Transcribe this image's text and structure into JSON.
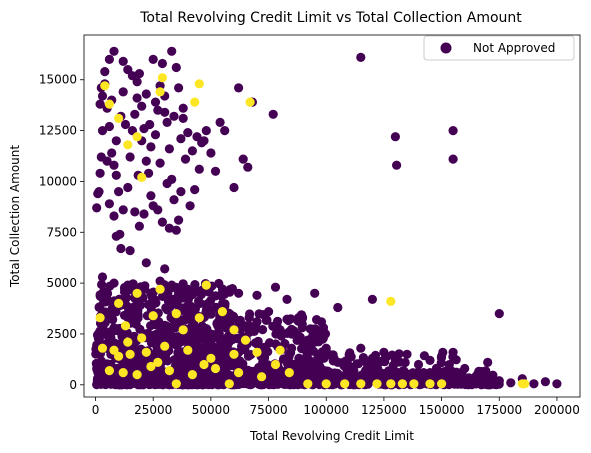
{
  "chart_data": {
    "type": "scatter",
    "title": "Total Revolving Credit Limit vs Total Collection Amount",
    "xlabel": "Total Revolving Credit Limit",
    "ylabel": "Total Collection Amount",
    "xlim": [
      -5000,
      210000
    ],
    "ylim": [
      -600,
      17200
    ],
    "xticks": [
      0,
      25000,
      50000,
      75000,
      100000,
      125000,
      150000,
      175000,
      200000
    ],
    "yticks": [
      0,
      2500,
      5000,
      7500,
      10000,
      12500,
      15000
    ],
    "grid": false,
    "legend": {
      "position": "top-right",
      "entries": [
        "Not Approved"
      ]
    },
    "colors": {
      "not_approved": "#440154",
      "approved": "#fde725"
    },
    "series": [
      {
        "name": "Not Approved",
        "color": "#440154",
        "points": [
          [
            500,
            8700
          ],
          [
            1000,
            9400
          ],
          [
            1500,
            9500
          ],
          [
            2000,
            10400
          ],
          [
            2500,
            11200
          ],
          [
            3000,
            12500
          ],
          [
            2000,
            13800
          ],
          [
            2500,
            14600
          ],
          [
            4000,
            14800
          ],
          [
            5000,
            13600
          ],
          [
            6000,
            12700
          ],
          [
            7000,
            11400
          ],
          [
            8000,
            10800
          ],
          [
            9000,
            10300
          ],
          [
            10000,
            9500
          ],
          [
            6000,
            8900
          ],
          [
            8000,
            8300
          ],
          [
            9000,
            7300
          ],
          [
            10500,
            7400
          ],
          [
            12000,
            8600
          ],
          [
            14000,
            9700
          ],
          [
            15000,
            11200
          ],
          [
            16000,
            12500
          ],
          [
            17000,
            13300
          ],
          [
            18000,
            14100
          ],
          [
            19000,
            15300
          ],
          [
            20000,
            13700
          ],
          [
            21000,
            12600
          ],
          [
            22000,
            11000
          ],
          [
            23000,
            10400
          ],
          [
            24000,
            9300
          ],
          [
            25000,
            8800
          ],
          [
            26000,
            12300
          ],
          [
            27000,
            13500
          ],
          [
            28000,
            14700
          ],
          [
            29000,
            15800
          ],
          [
            30000,
            14200
          ],
          [
            31000,
            12900
          ],
          [
            32000,
            11600
          ],
          [
            33000,
            10100
          ],
          [
            34000,
            9100
          ],
          [
            35000,
            7600
          ],
          [
            36000,
            8100
          ],
          [
            37000,
            12100
          ],
          [
            38000,
            13100
          ],
          [
            8000,
            16400
          ],
          [
            12000,
            15900
          ],
          [
            14000,
            15500
          ],
          [
            16000,
            15200
          ],
          [
            18000,
            14900
          ],
          [
            22000,
            14300
          ],
          [
            26000,
            13900
          ],
          [
            30000,
            13400
          ],
          [
            33000,
            16400
          ],
          [
            35000,
            15600
          ],
          [
            36000,
            14600
          ],
          [
            38000,
            13600
          ],
          [
            40000,
            12400
          ],
          [
            42000,
            11500
          ],
          [
            44000,
            12200
          ],
          [
            45000,
            10600
          ],
          [
            46000,
            11900
          ],
          [
            48000,
            12500
          ],
          [
            50000,
            11400
          ],
          [
            52000,
            10500
          ],
          [
            54000,
            12900
          ],
          [
            56000,
            12500
          ],
          [
            60000,
            9700
          ],
          [
            62000,
            14600
          ],
          [
            64000,
            11100
          ],
          [
            66000,
            10700
          ],
          [
            68000,
            13900
          ],
          [
            77000,
            13300
          ],
          [
            115000,
            16100
          ],
          [
            130000,
            12200
          ],
          [
            130500,
            10800
          ],
          [
            155000,
            12500
          ],
          [
            155000,
            11100
          ],
          [
            6000,
            16000
          ],
          [
            4000,
            15400
          ],
          [
            3000,
            14200
          ],
          [
            7000,
            14000
          ],
          [
            11000,
            13200
          ],
          [
            13000,
            12800
          ],
          [
            20000,
            12000
          ],
          [
            24000,
            11700
          ],
          [
            28000,
            10900
          ],
          [
            31000,
            9900
          ],
          [
            17000,
            8500
          ],
          [
            19000,
            7800
          ],
          [
            21000,
            8400
          ],
          [
            27000,
            8600
          ],
          [
            29000,
            8000
          ],
          [
            15000,
            6600
          ],
          [
            30000,
            5700
          ],
          [
            5000,
            11000
          ],
          [
            9000,
            12000
          ],
          [
            39000,
            11100
          ],
          [
            41000,
            8800
          ],
          [
            43000,
            9600
          ],
          [
            12000,
            14400
          ],
          [
            25000,
            16000
          ],
          [
            18500,
            10300
          ],
          [
            23500,
            12800
          ],
          [
            34000,
            13200
          ],
          [
            47000,
            12000
          ],
          [
            37000,
            9500
          ],
          [
            32000,
            7700
          ],
          [
            22000,
            6000
          ],
          [
            11000,
            6700
          ],
          [
            3000,
            5300
          ],
          [
            8000,
            5000
          ],
          [
            14000,
            4900
          ],
          [
            20000,
            4800
          ],
          [
            28000,
            5100
          ],
          [
            33000,
            4900
          ],
          [
            40000,
            4700
          ],
          [
            48000,
            4600
          ],
          [
            55000,
            4500
          ],
          [
            62000,
            4500
          ],
          [
            70000,
            4400
          ],
          [
            78000,
            4800
          ],
          [
            83000,
            4200
          ],
          [
            95000,
            4500
          ],
          [
            105000,
            3800
          ],
          [
            120000,
            4200
          ],
          [
            175000,
            3500
          ],
          [
            85000,
            2500
          ],
          [
            95000,
            2100
          ],
          [
            100000,
            1800
          ],
          [
            110000,
            1500
          ],
          [
            115000,
            1800
          ],
          [
            120000,
            1300
          ],
          [
            125000,
            1600
          ],
          [
            130000,
            1200
          ],
          [
            135000,
            1500
          ],
          [
            140000,
            1000
          ],
          [
            145000,
            1200
          ],
          [
            150000,
            1400
          ],
          [
            155000,
            1600
          ],
          [
            160000,
            800
          ],
          [
            165000,
            300
          ],
          [
            170000,
            1100
          ],
          [
            175000,
            200
          ],
          [
            180000,
            100
          ],
          [
            185000,
            300
          ],
          [
            190000,
            50
          ],
          [
            195000,
            150
          ],
          [
            200000,
            50
          ],
          [
            140000,
            150
          ],
          [
            150000,
            300
          ],
          [
            160000,
            100
          ],
          [
            170000,
            50
          ],
          [
            120000,
            450
          ],
          [
            110000,
            300
          ],
          [
            100000,
            650
          ],
          [
            90000,
            800
          ],
          [
            95000,
            1000
          ],
          [
            105000,
            1100
          ],
          [
            115000,
            400
          ],
          [
            125000,
            200
          ],
          [
            130000,
            650
          ],
          [
            135000,
            450
          ],
          [
            145000,
            600
          ],
          [
            155000,
            50
          ],
          [
            165000,
            50
          ],
          [
            60000,
            3300
          ],
          [
            65000,
            2900
          ],
          [
            70000,
            3100
          ],
          [
            75000,
            3600
          ],
          [
            80000,
            2700
          ],
          [
            85000,
            1800
          ],
          [
            88000,
            3300
          ],
          [
            92000,
            2200
          ]
        ],
        "dense_regions": [
          {
            "x": [
              0,
              60000
            ],
            "y": [
              0,
              5000
            ],
            "count": 700
          },
          {
            "x": [
              40000,
              100000
            ],
            "y": [
              0,
              3500
            ],
            "count": 350
          },
          {
            "x": [
              0,
              175000
            ],
            "y": [
              0,
              700
            ],
            "count": 420
          },
          {
            "x": [
              90000,
              160000
            ],
            "y": [
              0,
              1600
            ],
            "count": 120
          }
        ]
      },
      {
        "name": "",
        "color": "#fde725",
        "points": [
          [
            4000,
            14700
          ],
          [
            6000,
            13800
          ],
          [
            10000,
            13100
          ],
          [
            14000,
            11800
          ],
          [
            18000,
            12200
          ],
          [
            20000,
            10200
          ],
          [
            28000,
            14400
          ],
          [
            29000,
            15100
          ],
          [
            43000,
            13900
          ],
          [
            45000,
            14800
          ],
          [
            67000,
            13900
          ],
          [
            128000,
            4100
          ],
          [
            10000,
            4000
          ],
          [
            18000,
            4500
          ],
          [
            28000,
            4700
          ],
          [
            48000,
            4900
          ],
          [
            13000,
            2900
          ],
          [
            25000,
            3400
          ],
          [
            35000,
            3500
          ],
          [
            45000,
            3300
          ],
          [
            55000,
            3600
          ],
          [
            60000,
            2700
          ],
          [
            3000,
            1800
          ],
          [
            8000,
            1700
          ],
          [
            15000,
            1500
          ],
          [
            22000,
            1600
          ],
          [
            30000,
            1900
          ],
          [
            40000,
            1700
          ],
          [
            50000,
            1300
          ],
          [
            60000,
            1500
          ],
          [
            70000,
            1600
          ],
          [
            6000,
            700
          ],
          [
            12000,
            600
          ],
          [
            18000,
            500
          ],
          [
            24000,
            900
          ],
          [
            32000,
            700
          ],
          [
            42000,
            500
          ],
          [
            52000,
            800
          ],
          [
            62000,
            600
          ],
          [
            72000,
            400
          ],
          [
            35000,
            50
          ],
          [
            58000,
            50
          ],
          [
            92000,
            50
          ],
          [
            100000,
            50
          ],
          [
            108000,
            50
          ],
          [
            115000,
            50
          ],
          [
            122000,
            50
          ],
          [
            128000,
            50
          ],
          [
            133000,
            50
          ],
          [
            138000,
            50
          ],
          [
            145000,
            50
          ],
          [
            150000,
            50
          ],
          [
            185000,
            50
          ],
          [
            186000,
            50
          ],
          [
            20000,
            2300
          ],
          [
            38000,
            2700
          ],
          [
            65000,
            2200
          ],
          [
            80000,
            1700
          ],
          [
            2000,
            3300
          ],
          [
            27000,
            1100
          ],
          [
            47000,
            1000
          ],
          [
            78000,
            1000
          ],
          [
            84000,
            600
          ],
          [
            14000,
            2100
          ],
          [
            10000,
            1400
          ]
        ]
      }
    ]
  }
}
